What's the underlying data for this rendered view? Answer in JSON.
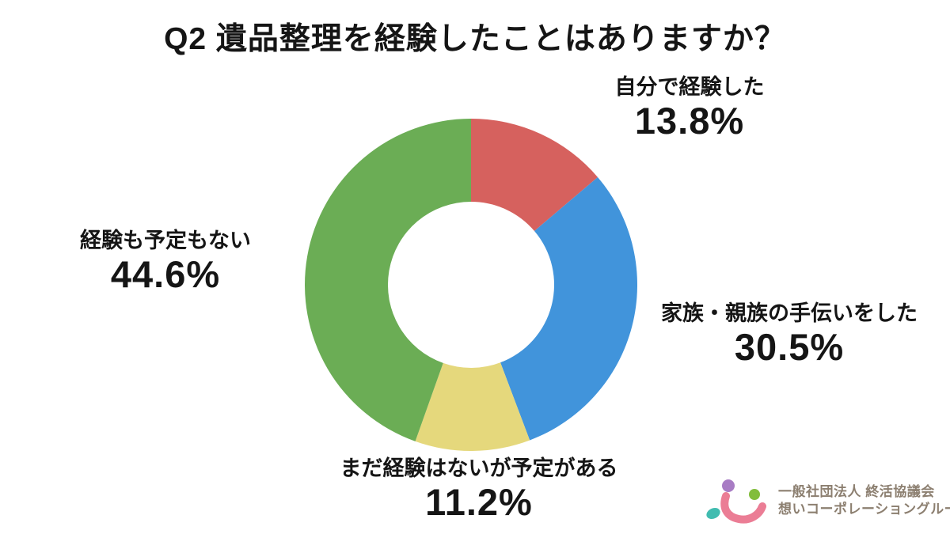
{
  "title": "Q2 遺品整理を経験したことはありますか？",
  "chart_data": {
    "type": "pie",
    "subtype": "donut",
    "title": "Q2 遺品整理を経験したことはありますか？",
    "start_angle_deg": 0,
    "direction": "clockwise",
    "inner_radius_ratio": 0.5,
    "legend_position": "around-labels",
    "slices": [
      {
        "label": "自分で経験した",
        "value": 13.8,
        "pct_label": "13.8%",
        "color": "#d6615e"
      },
      {
        "label": "家族・親族の手伝いをした",
        "value": 30.5,
        "pct_label": "30.5%",
        "color": "#4194db"
      },
      {
        "label": "まだ経験はないが予定がある",
        "value": 11.2,
        "pct_label": "11.2%",
        "color": "#e5d87c"
      },
      {
        "label": "経験も予定もない",
        "value": 44.6,
        "pct_label": "44.6%",
        "color": "#6bad55"
      }
    ]
  },
  "footer_logo": {
    "org_line1": "一般社団法人 終活協議会",
    "org_line2": "想いコーポレーショングループ",
    "text_color": "#8c7f70",
    "mark_colors": {
      "smile": "#eb7d95",
      "dot_top_left": "#a87cc4",
      "dot_top_right": "#82bd3c",
      "dot_bottom_left": "#41bcb0"
    }
  }
}
